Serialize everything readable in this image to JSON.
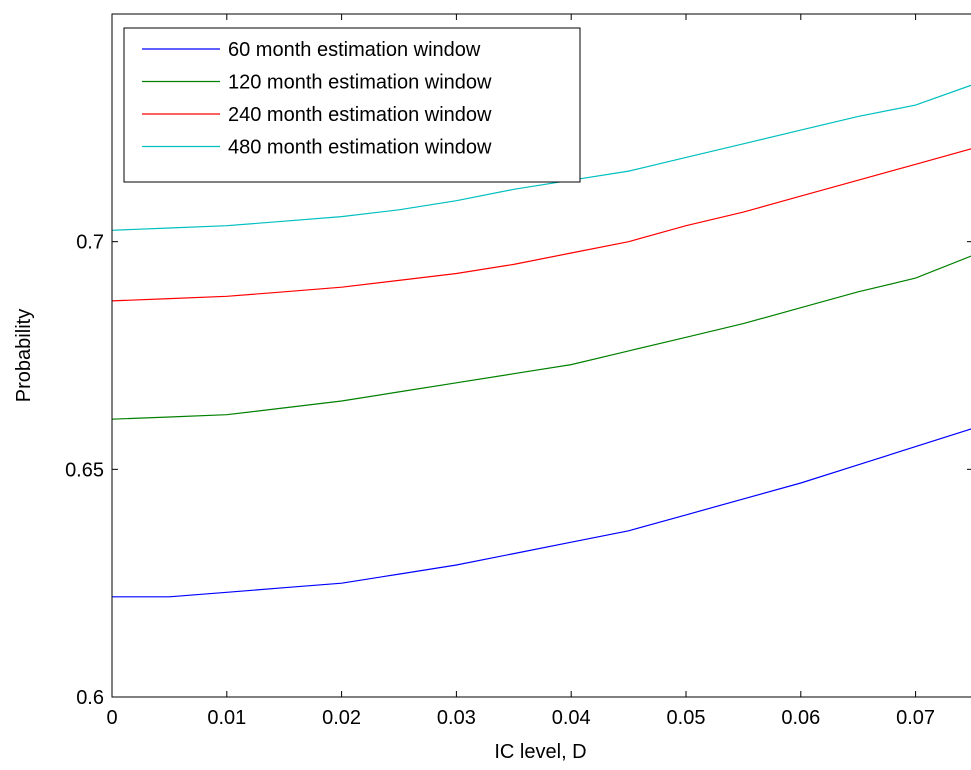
{
  "chart_data": {
    "type": "line",
    "title": "",
    "xlabel": "IC level, D",
    "ylabel": "Probability",
    "xlim": [
      0,
      0.075
    ],
    "ylim": [
      0.6,
      0.75
    ],
    "x_ticks": [
      0,
      0.01,
      0.02,
      0.03,
      0.04,
      0.05,
      0.06,
      0.07
    ],
    "x_tick_labels": [
      "0",
      "0.01",
      "0.02",
      "0.03",
      "0.04",
      "0.05",
      "0.06",
      "0.07"
    ],
    "y_ticks": [
      0.6,
      0.65,
      0.7
    ],
    "y_tick_labels": [
      "0.6",
      "0.65",
      "0.7"
    ],
    "grid": false,
    "legend_position": "top-left",
    "x": [
      0,
      0.005,
      0.01,
      0.015,
      0.02,
      0.025,
      0.03,
      0.035,
      0.04,
      0.045,
      0.05,
      0.055,
      0.06,
      0.065,
      0.07,
      0.075
    ],
    "series": [
      {
        "name": "60 month estimation window",
        "color": "#0000ff",
        "values": [
          0.622,
          0.622,
          0.623,
          0.624,
          0.625,
          0.627,
          0.629,
          0.6315,
          0.634,
          0.6365,
          0.64,
          0.6435,
          0.647,
          0.651,
          0.655,
          0.659
        ]
      },
      {
        "name": "120 month estimation window",
        "color": "#008000",
        "values": [
          0.661,
          0.6615,
          0.662,
          0.6635,
          0.665,
          0.667,
          0.669,
          0.671,
          0.673,
          0.676,
          0.679,
          0.682,
          0.6855,
          0.689,
          0.692,
          0.697
        ]
      },
      {
        "name": "240 month estimation window",
        "color": "#ff0000",
        "values": [
          0.687,
          0.6875,
          0.688,
          0.689,
          0.69,
          0.6915,
          0.693,
          0.695,
          0.6975,
          0.7,
          0.7035,
          0.7065,
          0.71,
          0.7135,
          0.717,
          0.7205
        ]
      },
      {
        "name": "480 month estimation window",
        "color": "#00bfbf",
        "values": [
          0.7025,
          0.703,
          0.7035,
          0.7045,
          0.7055,
          0.707,
          0.709,
          0.7115,
          0.7135,
          0.7155,
          0.7185,
          0.7215,
          0.7245,
          0.7275,
          0.73,
          0.7345
        ]
      }
    ]
  }
}
